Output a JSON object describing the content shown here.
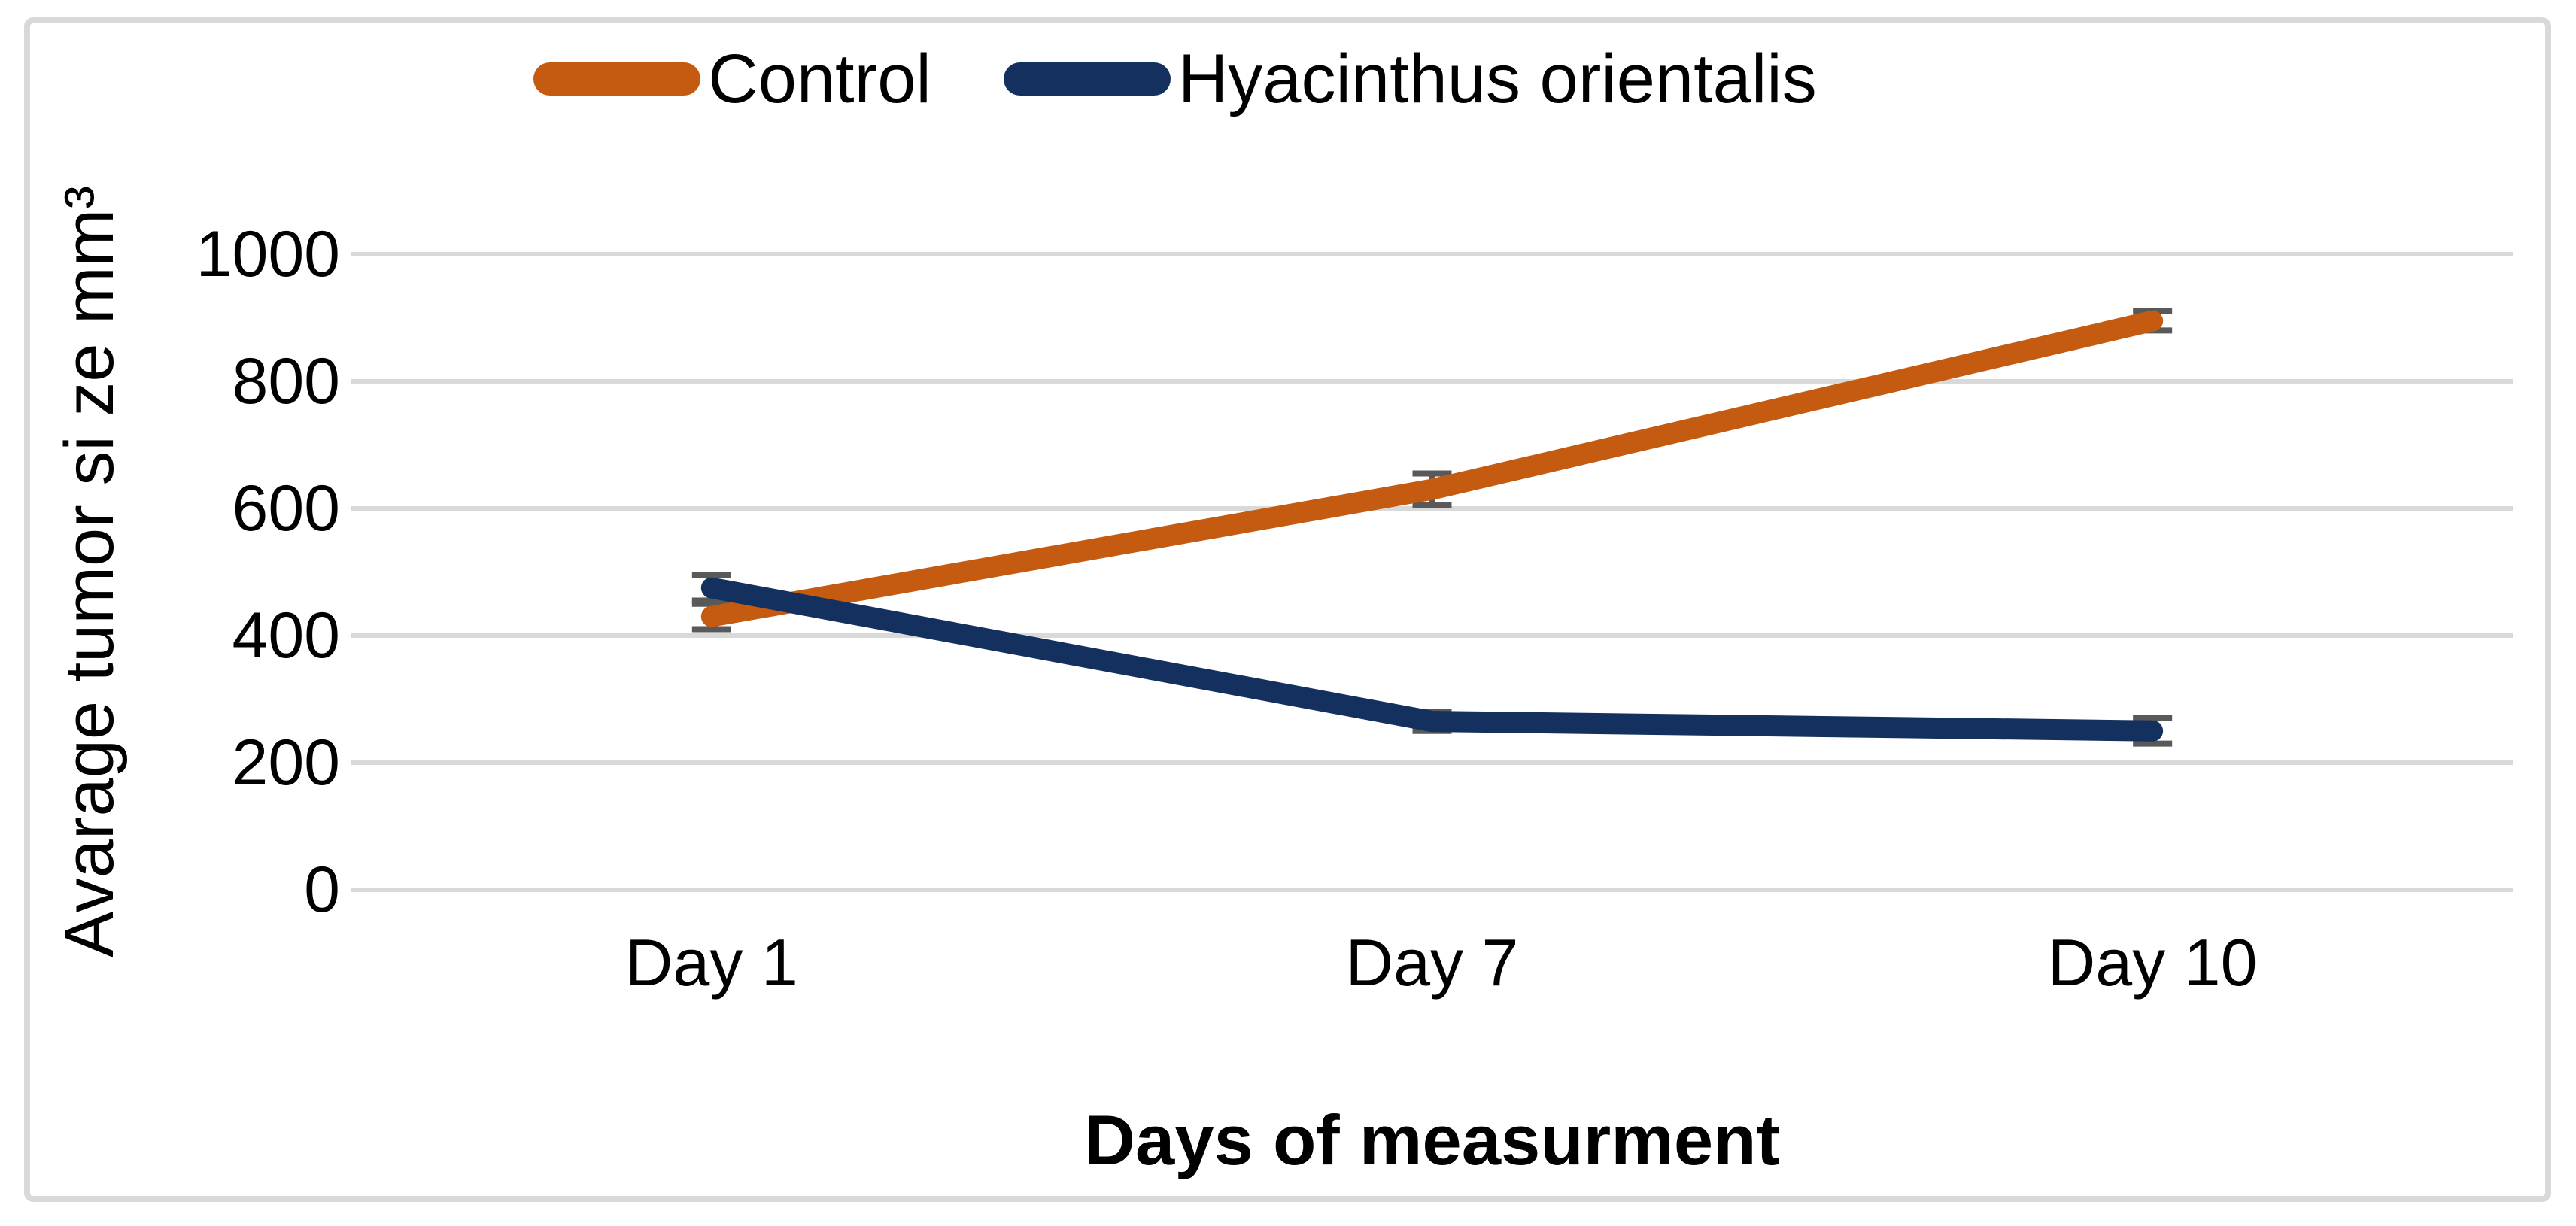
{
  "chart_data": {
    "type": "line",
    "title": "",
    "categories": [
      "Day 1",
      "Day 7",
      "Day 10"
    ],
    "series": [
      {
        "name": "Control",
        "color": "#C55A11",
        "values": [
          430,
          630,
          895
        ],
        "errors": [
          20,
          25,
          15
        ]
      },
      {
        "name": "Hyacinthus orientalis",
        "color": "#13305E",
        "values": [
          475,
          265,
          250
        ],
        "errors": [
          20,
          15,
          20
        ]
      }
    ],
    "xlabel": "Days of measurment",
    "ylabel": "Avarage tumor si ze mm³",
    "ylim": [
      0,
      1000
    ],
    "ytick_step": 200,
    "yticks": [
      0,
      200,
      400,
      600,
      800,
      1000
    ],
    "grid": "horizontal gridlines on",
    "legend_position": "top",
    "gridline_color": "#D9D9D9",
    "frame_border_color": "#D9D9D9",
    "error_bar_color": "#595959",
    "text_color": "#000000",
    "background_color": "#FFFFFF"
  }
}
